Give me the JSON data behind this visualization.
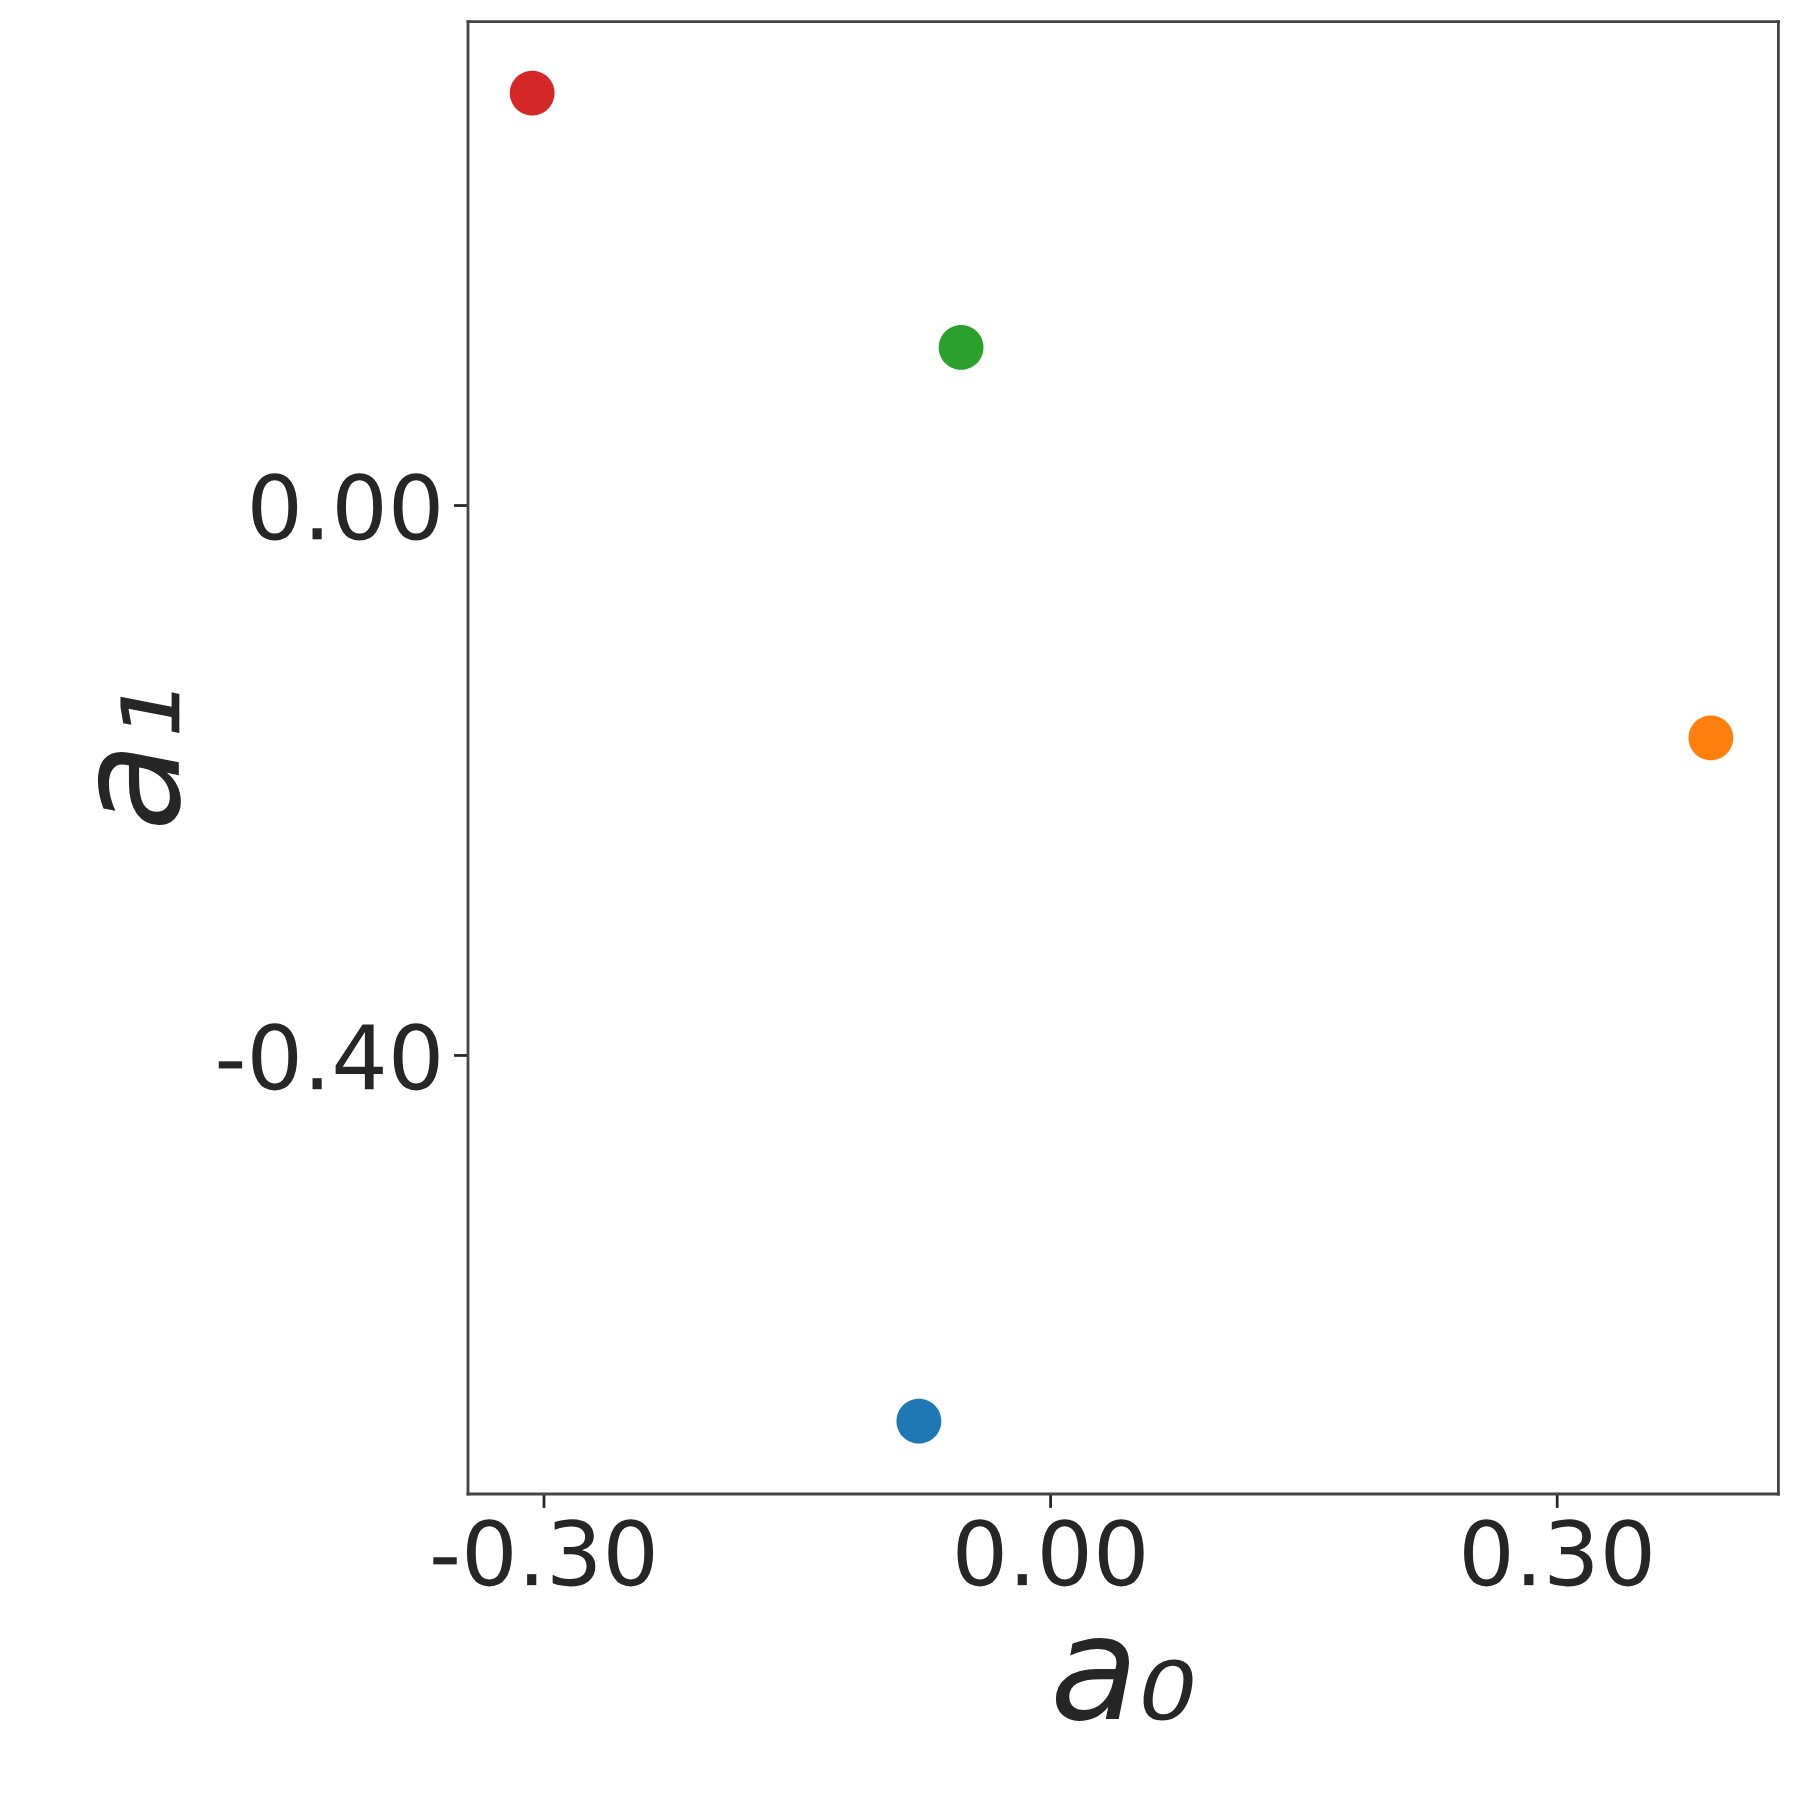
{
  "chart_data": {
    "type": "scatter",
    "xlabel": "a₀",
    "ylabel": "a₁",
    "x": [
      -0.078,
      0.391,
      -0.053,
      -0.307
    ],
    "values": [
      -0.666,
      -0.169,
      0.115,
      0.3
    ],
    "colors": [
      "#1f77b4",
      "#ff7f0e",
      "#2ca02c",
      "#d62728"
    ],
    "xlim": [
      -0.345,
      0.431
    ],
    "ylim": [
      -0.719,
      0.352
    ],
    "xticks": [
      {
        "value": -0.3,
        "label": "-0.30"
      },
      {
        "value": 0,
        "label": "0.00"
      },
      {
        "value": 0.3,
        "label": "0.30"
      }
    ],
    "yticks": [
      {
        "value": 0,
        "label": "0.00"
      },
      {
        "value": -0.4,
        "label": "-0.40"
      }
    ],
    "marker": "circle",
    "grid": false,
    "legend": false
  }
}
